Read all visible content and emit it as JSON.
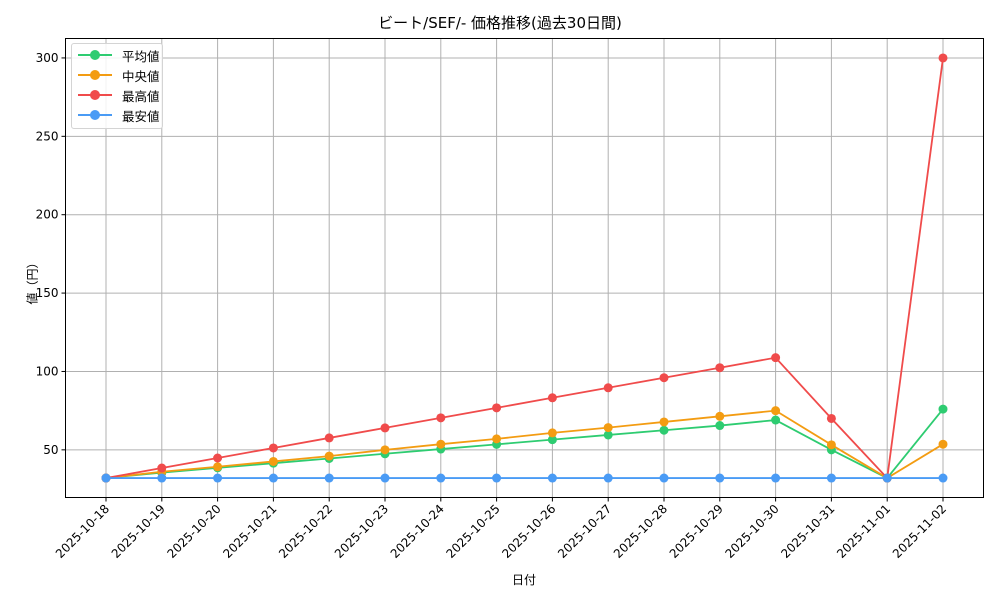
{
  "chart_data": {
    "type": "line",
    "title": "ビート/SEF/- 価格推移(過去30日間)",
    "xlabel": "日付",
    "ylabel": "値（円）",
    "categories": [
      "2025-10-18",
      "2025-10-19",
      "2025-10-20",
      "2025-10-21",
      "2025-10-22",
      "2025-10-23",
      "2025-10-24",
      "2025-10-25",
      "2025-10-26",
      "2025-10-27",
      "2025-10-28",
      "2025-10-29",
      "2025-10-30",
      "2025-10-31",
      "2025-11-01",
      "2025-11-02"
    ],
    "series": [
      {
        "name": "平均値",
        "color": "#2ecc71",
        "values": [
          32,
          35.5,
          38.5,
          41.5,
          44.5,
          47.5,
          50.5,
          53.5,
          56.5,
          59.5,
          62.5,
          65.5,
          69,
          50,
          32,
          76
        ]
      },
      {
        "name": "中央値",
        "color": "#f39c12",
        "values": [
          32,
          36,
          39.2,
          42.6,
          46,
          50,
          53.6,
          57,
          60.8,
          64.2,
          67.8,
          71.4,
          75,
          53.2,
          32,
          53.6
        ]
      },
      {
        "name": "最高値",
        "color": "#f04b4b",
        "values": [
          32,
          38.4,
          44.8,
          51.2,
          57.6,
          64,
          70.4,
          76.8,
          83.2,
          89.6,
          96,
          102.4,
          108.8,
          70,
          32,
          300
        ]
      },
      {
        "name": "最安値",
        "color": "#4a9bf5",
        "values": [
          32,
          32,
          32,
          32,
          32,
          32,
          32,
          32,
          32,
          32,
          32,
          32,
          32,
          32,
          32,
          32
        ]
      }
    ],
    "yticks": [
      50,
      100,
      150,
      200,
      250,
      300
    ],
    "ylim": [
      19.6,
      312.4
    ],
    "grid": true,
    "legend_position": "upper left"
  }
}
